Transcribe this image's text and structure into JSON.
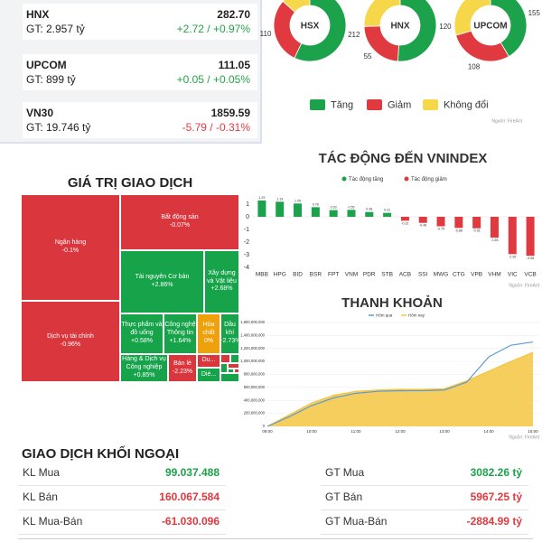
{
  "indices": [
    {
      "name": "HNX",
      "value": "282.70",
      "gt": "GT: 2.957 tỷ",
      "change": "+2.72 / +0.97%",
      "color": "#22a447"
    },
    {
      "name": "UPCOM",
      "value": "111.05",
      "gt": "GT: 899 tỷ",
      "change": "+0.05 / +0.05%",
      "color": "#22a447"
    },
    {
      "name": "VN30",
      "value": "1859.59",
      "gt": "GT: 19.746 tỷ",
      "change": "-5.79 / -0.31%",
      "color": "#e5393f"
    }
  ],
  "breadth": {
    "legend": [
      {
        "name": "Tăng",
        "color": "#1ba24a"
      },
      {
        "name": "Giảm",
        "color": "#e0393f"
      },
      {
        "name": "Không đổi",
        "color": "#f7d74a"
      }
    ],
    "source": "Nguồn: FireAnt"
  },
  "chart_data": [
    {
      "type": "pie",
      "title": "HSX",
      "values": [
        212,
        110,
        50
      ]
    },
    {
      "type": "pie",
      "title": "HNX",
      "values": [
        120,
        55,
        60
      ]
    },
    {
      "type": "pie",
      "title": "UPCOM",
      "values": [
        155,
        108,
        110
      ]
    },
    {
      "type": "bar",
      "title": "TÁC ĐỘNG ĐẾN VNINDEX",
      "categories": [
        "MBB",
        "HPG",
        "BID",
        "BSR",
        "FPT",
        "VNM",
        "PDR",
        "STB",
        "ACB",
        "SSI",
        "MWG",
        "CTG",
        "VPB",
        "VHM",
        "VIC",
        "VCB"
      ],
      "series": [
        {
          "name": "Tác động tăng",
          "color": "#1ba24a",
          "values": [
            1.29,
            1.19,
            1.05,
            0.76,
            0.53,
            0.55,
            0.38,
            0.31,
            null,
            null,
            null,
            null,
            null,
            null,
            null,
            null
          ]
        },
        {
          "name": "Tác động giảm",
          "color": "#e0393f",
          "values": [
            null,
            null,
            null,
            null,
            null,
            null,
            null,
            null,
            -0.31,
            -0.48,
            -0.75,
            -0.88,
            -0.91,
            -1.65,
            -2.95,
            -3.08
          ]
        }
      ],
      "ylim": [
        -4,
        1.5
      ],
      "yticks": [
        1,
        0,
        -1,
        -2,
        -3,
        -4
      ],
      "source": "Nguồn: FireAnt"
    },
    {
      "type": "line",
      "title": "THANH KHOẢN",
      "categories": [
        "09:00",
        null,
        "10:00",
        null,
        "11:00",
        null,
        "12:00",
        null,
        "13:00",
        null,
        "14:00",
        null,
        "15:00"
      ],
      "series": [
        {
          "name": "Hôm qua",
          "color": "#5b9bd5",
          "values": [
            0,
            150000000,
            320000000,
            440000000,
            510000000,
            540000000,
            550000000,
            550000000,
            560000000,
            680000000,
            1070000000,
            1250000000,
            1300000000
          ]
        },
        {
          "name": "Hôm nay",
          "color": "#f5c542",
          "area": true,
          "values": [
            0,
            180000000,
            360000000,
            480000000,
            540000000,
            560000000,
            570000000,
            570000000,
            580000000,
            700000000,
            850000000,
            1000000000,
            1140000000
          ]
        }
      ],
      "ylim": [
        0,
        1600000000
      ],
      "yticks": [
        0,
        {
          "value": 200000000,
          "label": "200,000,000"
        },
        {
          "value": 400000000,
          "label": "400,000,000"
        },
        {
          "value": 600000000,
          "label": "600,000,000"
        },
        {
          "value": 800000000,
          "label": "800,000,000"
        },
        {
          "value": 1000000000,
          "label": "1,000,000,000"
        },
        {
          "value": 1200000000,
          "label": "1,200,000,000"
        },
        {
          "value": 1400000000,
          "label": "1,400,000,000"
        },
        {
          "value": 1600000000,
          "label": "1,600,000,000"
        }
      ],
      "grid": true,
      "source": "Nguồn: FireAnt"
    }
  ],
  "treemap": {
    "title": "GIÁ TRỊ GIAO DỊCH",
    "cells": [
      {
        "name": "Ngân hàng",
        "change": "-0.1%",
        "color": "#d9363e"
      },
      {
        "name": "Dịch vụ tài chính",
        "change": "-0.96%",
        "color": "#d9363e"
      },
      {
        "name": "Bất động sản",
        "change": "-0.07%",
        "color": "#d9363e"
      },
      {
        "name": "Tài nguyên Cơ bản",
        "change": "+2.86%",
        "color": "#16a34a"
      },
      {
        "name": "Xây dựng và Vật liệu",
        "change": "+2.68%",
        "color": "#16a34a"
      },
      {
        "name": "Thực phẩm và đồ uống",
        "change": "+0.58%",
        "color": "#16a34a"
      },
      {
        "name": "Công nghệ Thông tin",
        "change": "+1.64%",
        "color": "#16a34a"
      },
      {
        "name": "Hóa chất",
        "change": "0%",
        "color": "#efa10c"
      },
      {
        "name": "Dầu khí",
        "change": "+2.73%",
        "color": "#16a34a"
      },
      {
        "name": "Hàng & Dịch vụ Công nghiệp",
        "change": "+0.85%",
        "color": "#16a34a"
      },
      {
        "name": "Bán lẻ",
        "change": "-2.23%",
        "color": "#d9363e"
      },
      {
        "name": "Du...",
        "change": "",
        "color": "#d9363e"
      },
      {
        "name": "Dié...",
        "change": "",
        "color": "#16a34a"
      }
    ]
  },
  "foreign": {
    "title": "GIAO DỊCH KHỐI NGOẠI",
    "rows": [
      [
        {
          "label": "KL Mua",
          "value": "99.037.488",
          "color": "#1ba24a"
        },
        {
          "label": "GT Mua",
          "value": "3082.26 tỷ",
          "color": "#1ba24a"
        }
      ],
      [
        {
          "label": "KL Bán",
          "value": "160.067.584",
          "color": "#e0393f"
        },
        {
          "label": "GT Bán",
          "value": "5967.25 tỷ",
          "color": "#e0393f"
        }
      ],
      [
        {
          "label": "KL Mua-Bán",
          "value": "-61.030.096",
          "color": "#e0393f"
        },
        {
          "label": "GT Mua-Bán",
          "value": "-2884.99 tỷ",
          "color": "#e0393f"
        }
      ]
    ]
  }
}
